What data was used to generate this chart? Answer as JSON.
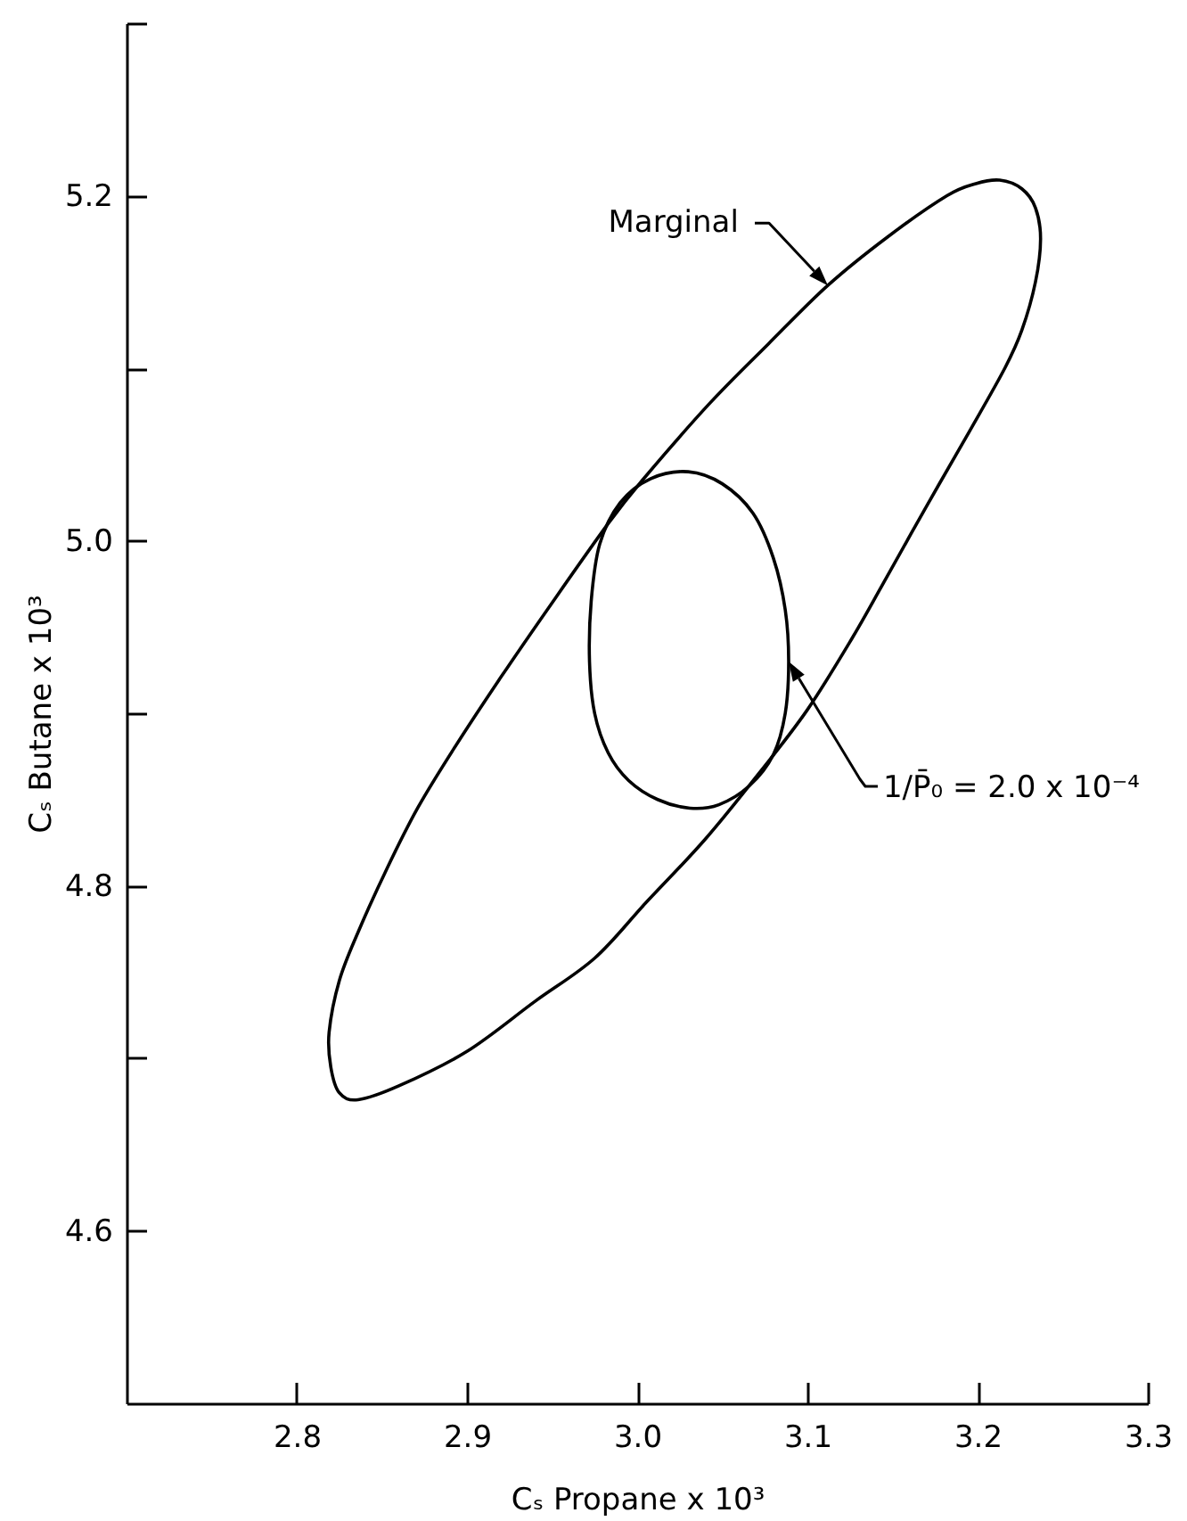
{
  "chart_data": {
    "type": "line",
    "xlabel": "Cₛ Propane x 10³",
    "ylabel": "Cₛ Butane x 10³",
    "xlim": [
      2.7,
      3.3
    ],
    "ylim": [
      4.5,
      5.3
    ],
    "xticks": [
      2.8,
      2.9,
      {
        "value": 3,
        "label": "3.0"
      },
      3.1,
      3.2,
      3.3
    ],
    "yticks": [
      4.6,
      {
        "value": 4.7,
        "label": null
      },
      4.8,
      {
        "value": 4.9,
        "label": null
      },
      {
        "value": 5,
        "label": "5.0"
      },
      {
        "value": 5.1,
        "label": null
      },
      5.2,
      {
        "value": 5.3,
        "label": null
      }
    ],
    "annotations": [
      "Marginal",
      "1/P̄₀ = 2.0 x 10⁻⁴"
    ]
  }
}
